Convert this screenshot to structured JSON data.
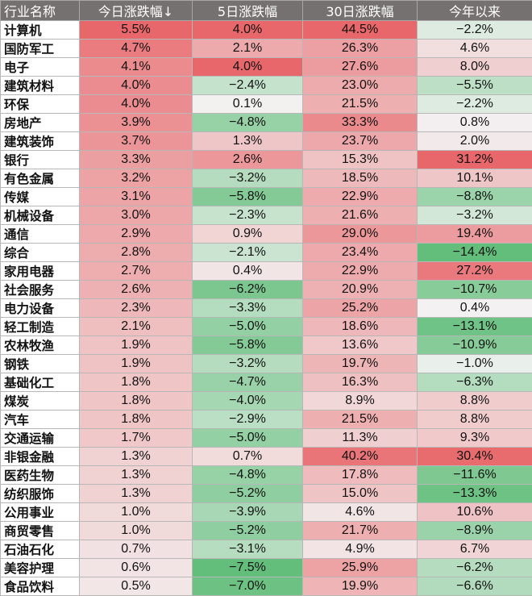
{
  "chart_data": {
    "type": "table",
    "columns": [
      "行业名称",
      "今日涨跌幅↓",
      "5日涨跌幅",
      "30日涨跌幅",
      "今年以来"
    ],
    "rows": [
      {
        "name": "计算机",
        "today": "5.5%",
        "d5": "4.0%",
        "d30": "44.5%",
        "ytd": "−2.2%"
      },
      {
        "name": "国防军工",
        "today": "4.7%",
        "d5": "2.1%",
        "d30": "26.3%",
        "ytd": "4.6%"
      },
      {
        "name": "电子",
        "today": "4.1%",
        "d5": "4.0%",
        "d30": "27.6%",
        "ytd": "8.0%"
      },
      {
        "name": "建筑材料",
        "today": "4.0%",
        "d5": "−2.4%",
        "d30": "23.0%",
        "ytd": "−5.5%"
      },
      {
        "name": "环保",
        "today": "4.0%",
        "d5": "0.1%",
        "d30": "21.5%",
        "ytd": "−2.2%"
      },
      {
        "name": "房地产",
        "today": "3.9%",
        "d5": "−4.8%",
        "d30": "33.3%",
        "ytd": "0.8%"
      },
      {
        "name": "建筑装饰",
        "today": "3.7%",
        "d5": "1.3%",
        "d30": "23.7%",
        "ytd": "2.0%"
      },
      {
        "name": "银行",
        "today": "3.3%",
        "d5": "2.6%",
        "d30": "15.3%",
        "ytd": "31.2%"
      },
      {
        "name": "有色金属",
        "today": "3.2%",
        "d5": "−3.2%",
        "d30": "18.5%",
        "ytd": "10.1%"
      },
      {
        "name": "传媒",
        "today": "3.1%",
        "d5": "−5.8%",
        "d30": "22.9%",
        "ytd": "−8.8%"
      },
      {
        "name": "机械设备",
        "today": "3.0%",
        "d5": "−2.3%",
        "d30": "21.6%",
        "ytd": "−3.2%"
      },
      {
        "name": "通信",
        "today": "2.9%",
        "d5": "0.9%",
        "d30": "29.0%",
        "ytd": "19.4%"
      },
      {
        "name": "综合",
        "today": "2.8%",
        "d5": "−2.1%",
        "d30": "23.4%",
        "ytd": "−14.4%"
      },
      {
        "name": "家用电器",
        "today": "2.7%",
        "d5": "0.4%",
        "d30": "22.9%",
        "ytd": "27.2%"
      },
      {
        "name": "社会服务",
        "today": "2.6%",
        "d5": "−6.2%",
        "d30": "20.9%",
        "ytd": "−10.7%"
      },
      {
        "name": "电力设备",
        "today": "2.3%",
        "d5": "−3.3%",
        "d30": "25.2%",
        "ytd": "0.4%"
      },
      {
        "name": "轻工制造",
        "today": "2.1%",
        "d5": "−5.0%",
        "d30": "18.6%",
        "ytd": "−13.1%"
      },
      {
        "name": "农林牧渔",
        "today": "1.9%",
        "d5": "−5.8%",
        "d30": "13.6%",
        "ytd": "−10.9%"
      },
      {
        "name": "钢铁",
        "today": "1.9%",
        "d5": "−3.2%",
        "d30": "19.7%",
        "ytd": "−1.0%"
      },
      {
        "name": "基础化工",
        "today": "1.8%",
        "d5": "−4.7%",
        "d30": "16.3%",
        "ytd": "−6.3%"
      },
      {
        "name": "煤炭",
        "today": "1.8%",
        "d5": "−4.0%",
        "d30": "8.9%",
        "ytd": "8.8%"
      },
      {
        "name": "汽车",
        "today": "1.8%",
        "d5": "−2.9%",
        "d30": "21.5%",
        "ytd": "8.8%"
      },
      {
        "name": "交通运输",
        "today": "1.7%",
        "d5": "−5.0%",
        "d30": "11.3%",
        "ytd": "9.3%"
      },
      {
        "name": "非银金融",
        "today": "1.3%",
        "d5": "0.7%",
        "d30": "40.2%",
        "ytd": "30.4%"
      },
      {
        "name": "医药生物",
        "today": "1.3%",
        "d5": "−4.8%",
        "d30": "17.8%",
        "ytd": "−11.6%"
      },
      {
        "name": "纺织服饰",
        "today": "1.3%",
        "d5": "−5.2%",
        "d30": "15.0%",
        "ytd": "−13.3%"
      },
      {
        "name": "公用事业",
        "today": "1.0%",
        "d5": "−3.9%",
        "d30": "4.6%",
        "ytd": "10.6%"
      },
      {
        "name": "商贸零售",
        "today": "1.0%",
        "d5": "−5.2%",
        "d30": "21.7%",
        "ytd": "−8.9%"
      },
      {
        "name": "石油石化",
        "today": "0.7%",
        "d5": "−3.1%",
        "d30": "4.9%",
        "ytd": "6.7%"
      },
      {
        "name": "美容护理",
        "today": "0.6%",
        "d5": "−7.5%",
        "d30": "25.9%",
        "ytd": "−6.2%"
      },
      {
        "name": "食品饮料",
        "today": "0.5%",
        "d5": "−7.0%",
        "d30": "19.9%",
        "ytd": "−6.6%"
      }
    ],
    "colors": {
      "header_bg": "#767171",
      "header_text": "#ffffff",
      "positive_max": "#e8676b",
      "negative_max": "#63be7b",
      "neutral": "#f3f3f3"
    }
  }
}
